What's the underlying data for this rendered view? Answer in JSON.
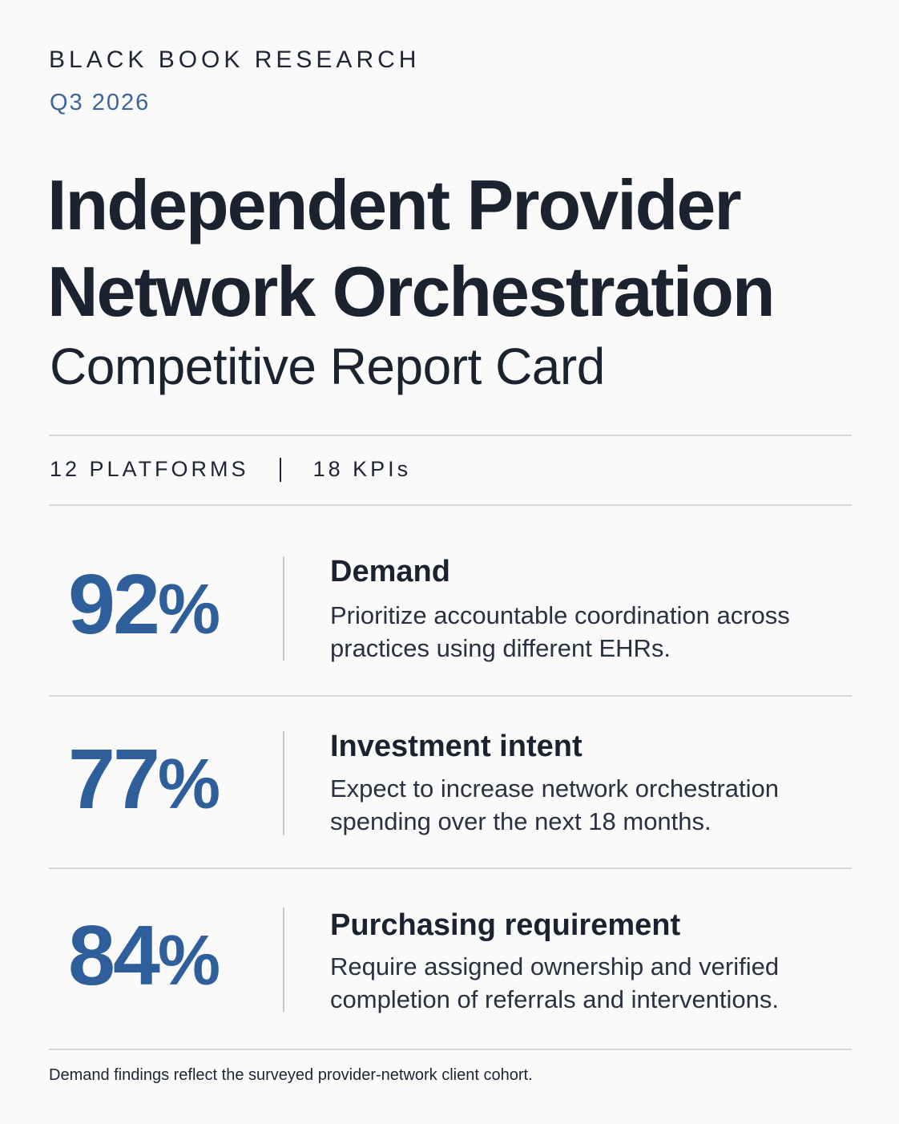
{
  "header": {
    "publisher": "BLACK BOOK RESEARCH",
    "period": "Q3 2026"
  },
  "title": {
    "line1": "Independent Provider",
    "line2": "Network Orchestration",
    "subtitle": "Competitive Report Card"
  },
  "meta": {
    "platforms": "12 PLATFORMS",
    "kpis": "18 KPIs"
  },
  "stats": [
    {
      "value": "92",
      "unit": "%",
      "label": "Demand",
      "description": "Prioritize accountable coordination across practices using different EHRs."
    },
    {
      "value": "77",
      "unit": "%",
      "label": "Investment intent",
      "description": "Expect to increase network orchestration spending over the next 18 months."
    },
    {
      "value": "84",
      "unit": "%",
      "label": "Purchasing requirement",
      "description": "Require assigned ownership and verified completion of referrals and interventions."
    }
  ],
  "footnote": "Demand findings reflect the surveyed provider-network client cohort.",
  "colors": {
    "accent": "#2f5f9b",
    "text": "#1b2230",
    "rule": "#d3d7de",
    "background": "#fafafa"
  }
}
